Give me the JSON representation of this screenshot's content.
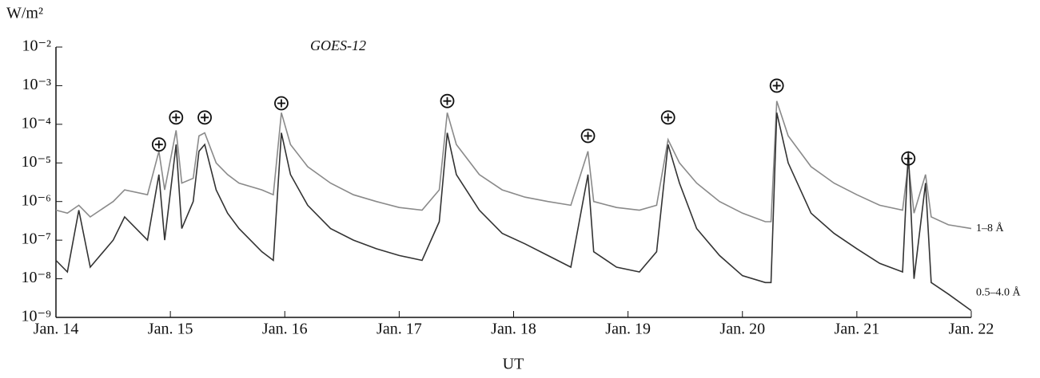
{
  "chart_data": {
    "type": "line",
    "title": "GOES-12",
    "y_label": "W/m²",
    "x_label": "UT",
    "log_y": true,
    "xlim": [
      14,
      22
    ],
    "xticks": [
      {
        "value": 14,
        "label": "Jan. 14"
      },
      {
        "value": 15,
        "label": "Jan. 15"
      },
      {
        "value": 16,
        "label": "Jan. 16"
      },
      {
        "value": 17,
        "label": "Jan. 17"
      },
      {
        "value": 18,
        "label": "Jan. 18"
      },
      {
        "value": 19,
        "label": "Jan. 19"
      },
      {
        "value": 20,
        "label": "Jan. 20"
      },
      {
        "value": 21,
        "label": "Jan. 21"
      },
      {
        "value": 22,
        "label": "Jan. 22"
      }
    ],
    "ylim": [
      1e-09,
      0.01
    ],
    "yticks": [
      {
        "value": 1e-09,
        "label": "10⁻⁹"
      },
      {
        "value": 1e-08,
        "label": "10⁻⁸"
      },
      {
        "value": 1e-07,
        "label": "10⁻⁷"
      },
      {
        "value": 1e-06,
        "label": "10⁻⁶"
      },
      {
        "value": 1e-05,
        "label": "10⁻⁵"
      },
      {
        "value": 0.0001,
        "label": "10⁻⁴"
      },
      {
        "value": 0.001,
        "label": "10⁻³"
      },
      {
        "value": 0.01,
        "label": "10⁻²"
      }
    ],
    "x": [
      14.0,
      14.1,
      14.2,
      14.3,
      14.5,
      14.6,
      14.8,
      14.9,
      14.95,
      15.05,
      15.1,
      15.2,
      15.25,
      15.3,
      15.4,
      15.5,
      15.6,
      15.8,
      15.9,
      15.97,
      16.05,
      16.2,
      16.4,
      16.6,
      16.8,
      17.0,
      17.2,
      17.35,
      17.42,
      17.5,
      17.7,
      17.9,
      18.1,
      18.3,
      18.5,
      18.65,
      18.7,
      18.9,
      19.1,
      19.25,
      19.35,
      19.45,
      19.6,
      19.8,
      20.0,
      20.2,
      20.25,
      20.3,
      20.4,
      20.6,
      20.8,
      21.0,
      21.2,
      21.4,
      21.45,
      21.5,
      21.6,
      21.65,
      21.8,
      22.0
    ],
    "series": [
      {
        "name": "1–8 Å",
        "color": "#8a8a8a",
        "values": [
          6e-07,
          5e-07,
          8e-07,
          4e-07,
          1e-06,
          2e-06,
          1.5e-06,
          2e-05,
          2e-06,
          7e-05,
          3e-06,
          4e-06,
          5e-05,
          6e-05,
          1e-05,
          5e-06,
          3e-06,
          2e-06,
          1.5e-06,
          0.0002,
          3e-05,
          8e-06,
          3e-06,
          1.5e-06,
          1e-06,
          7e-07,
          6e-07,
          2e-06,
          0.0002,
          3e-05,
          5e-06,
          2e-06,
          1.3e-06,
          1e-06,
          8e-07,
          2e-05,
          1e-06,
          7e-07,
          6e-07,
          8e-07,
          4e-05,
          1e-05,
          3e-06,
          1e-06,
          5e-07,
          3e-07,
          3e-07,
          0.0004,
          5e-05,
          8e-06,
          3e-06,
          1.5e-06,
          8e-07,
          6e-07,
          1e-05,
          5e-07,
          5e-06,
          4e-07,
          2.5e-07,
          2e-07
        ]
      },
      {
        "name": "0.5–4.0 Å",
        "color": "#333333",
        "values": [
          3e-08,
          1.5e-08,
          6e-07,
          2e-08,
          1e-07,
          4e-07,
          1e-07,
          5e-06,
          1e-07,
          3e-05,
          2e-07,
          1e-06,
          2e-05,
          3e-05,
          2e-06,
          5e-07,
          2e-07,
          5e-08,
          3e-08,
          6e-05,
          5e-06,
          8e-07,
          2e-07,
          1e-07,
          6e-08,
          4e-08,
          3e-08,
          3e-07,
          6e-05,
          5e-06,
          6e-07,
          1.5e-07,
          8e-08,
          4e-08,
          2e-08,
          5e-06,
          5e-08,
          2e-08,
          1.5e-08,
          5e-08,
          3e-05,
          3e-06,
          2e-07,
          4e-08,
          1.2e-08,
          8e-09,
          8e-09,
          0.0002,
          1e-05,
          5e-07,
          1.5e-07,
          6e-08,
          2.5e-08,
          1.5e-08,
          2e-05,
          1e-08,
          3e-06,
          8e-09,
          4e-09,
          1.5e-09
        ]
      }
    ],
    "markers": {
      "x": [
        14.9,
        15.05,
        15.3,
        15.97,
        17.42,
        18.65,
        19.35,
        20.3,
        21.45
      ],
      "y": [
        3e-05,
        0.00015,
        0.00015,
        0.00035,
        0.0004,
        5e-05,
        0.00015,
        0.001,
        1.3e-05
      ]
    }
  }
}
